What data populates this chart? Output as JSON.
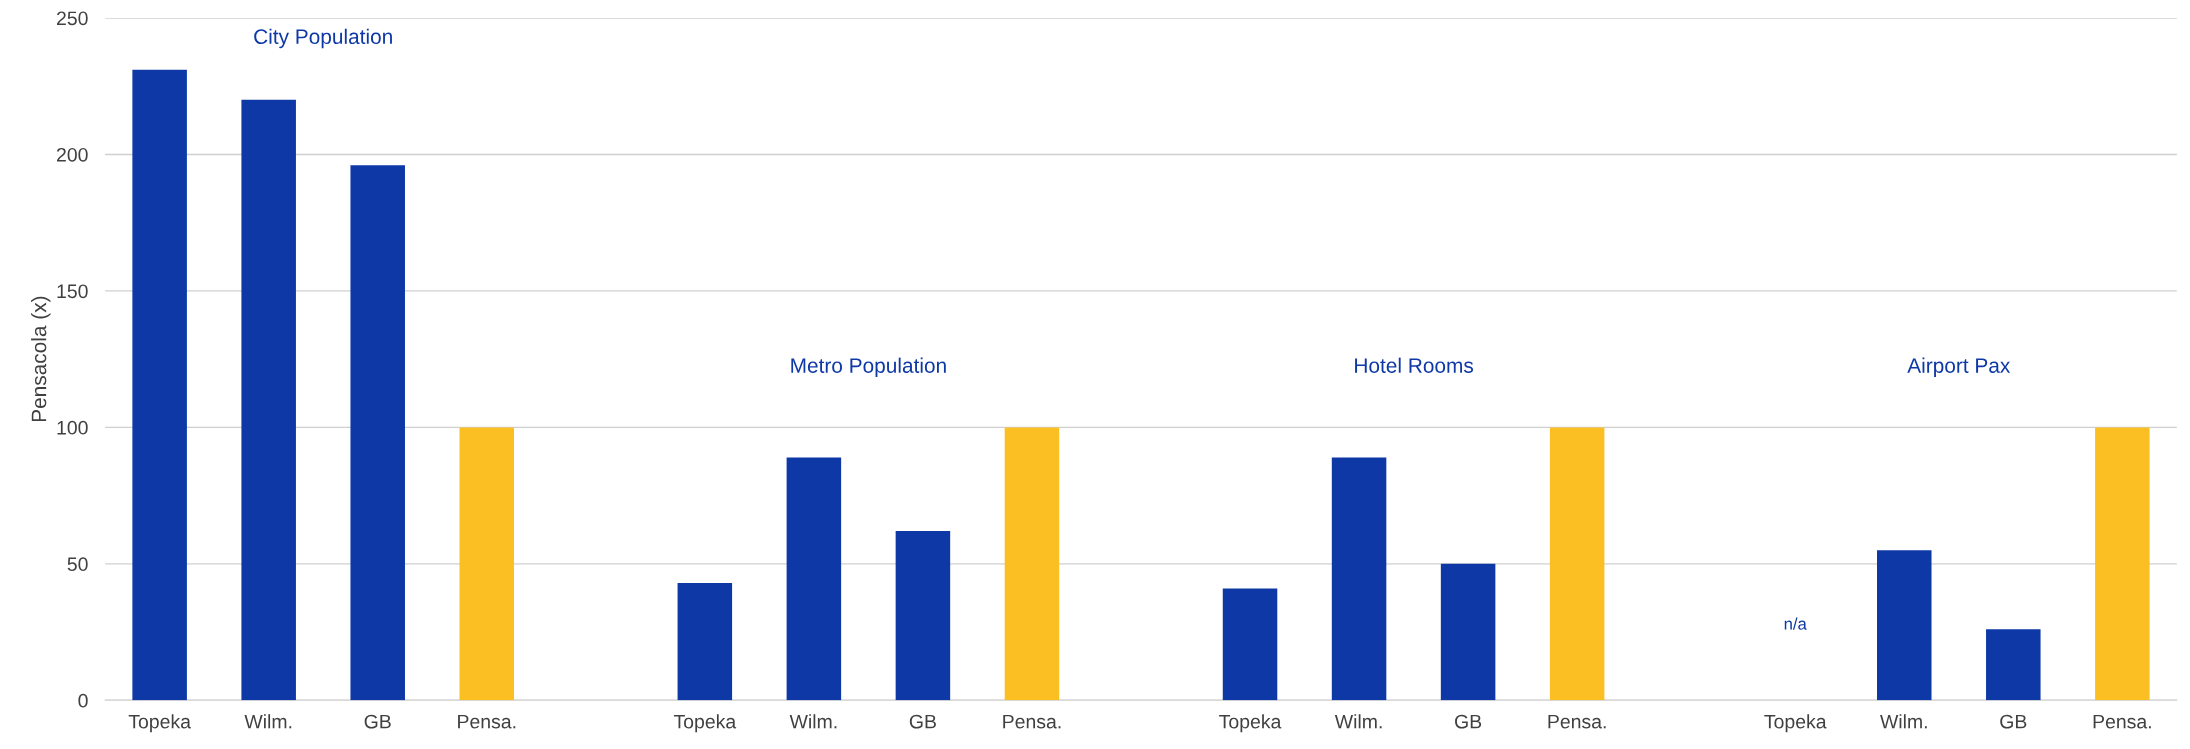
{
  "chart_data": {
    "type": "bar",
    "ylabel": "Pensacola (x)",
    "categories": [
      "Topeka",
      "Wilm.",
      "GB",
      "Pensa.",
      null,
      "Topeka",
      "Wilm.",
      "GB",
      "Pensa.",
      null,
      "Topeka",
      "Wilm.",
      "GB",
      "Pensa.",
      null,
      "Topeka",
      "Wilm.",
      "GB",
      "Pensa."
    ],
    "values": [
      231,
      220,
      196,
      100,
      null,
      43,
      89,
      62,
      100,
      null,
      41,
      89,
      50,
      100,
      null,
      null,
      55,
      26,
      100
    ],
    "colors": [
      "#0d38a6",
      "#0d38a6",
      "#0d38a6",
      "#fbbf24",
      "#0d38a6",
      "#0d38a6",
      "#0d38a6",
      "#0d38a6",
      "#fbbf24",
      "#0d38a6",
      "#0d38a6",
      "#0d38a6",
      "#0d38a6",
      "#fbbf24",
      "#0d38a6",
      "#0d38a6",
      "#0d38a6",
      "#0d38a6",
      "#fbbf24"
    ],
    "value_labels": [
      null,
      null,
      null,
      null,
      null,
      null,
      null,
      null,
      null,
      null,
      null,
      null,
      null,
      null,
      null,
      "n/a",
      null,
      null,
      null
    ],
    "annotations": [
      "City Population",
      "Metro Population",
      "Hotel Rooms",
      "Airport Pax"
    ],
    "ylim": [
      0,
      250
    ],
    "yticks": [
      0,
      50,
      100,
      150,
      200,
      250
    ],
    "grid": "y",
    "legend": false
  }
}
